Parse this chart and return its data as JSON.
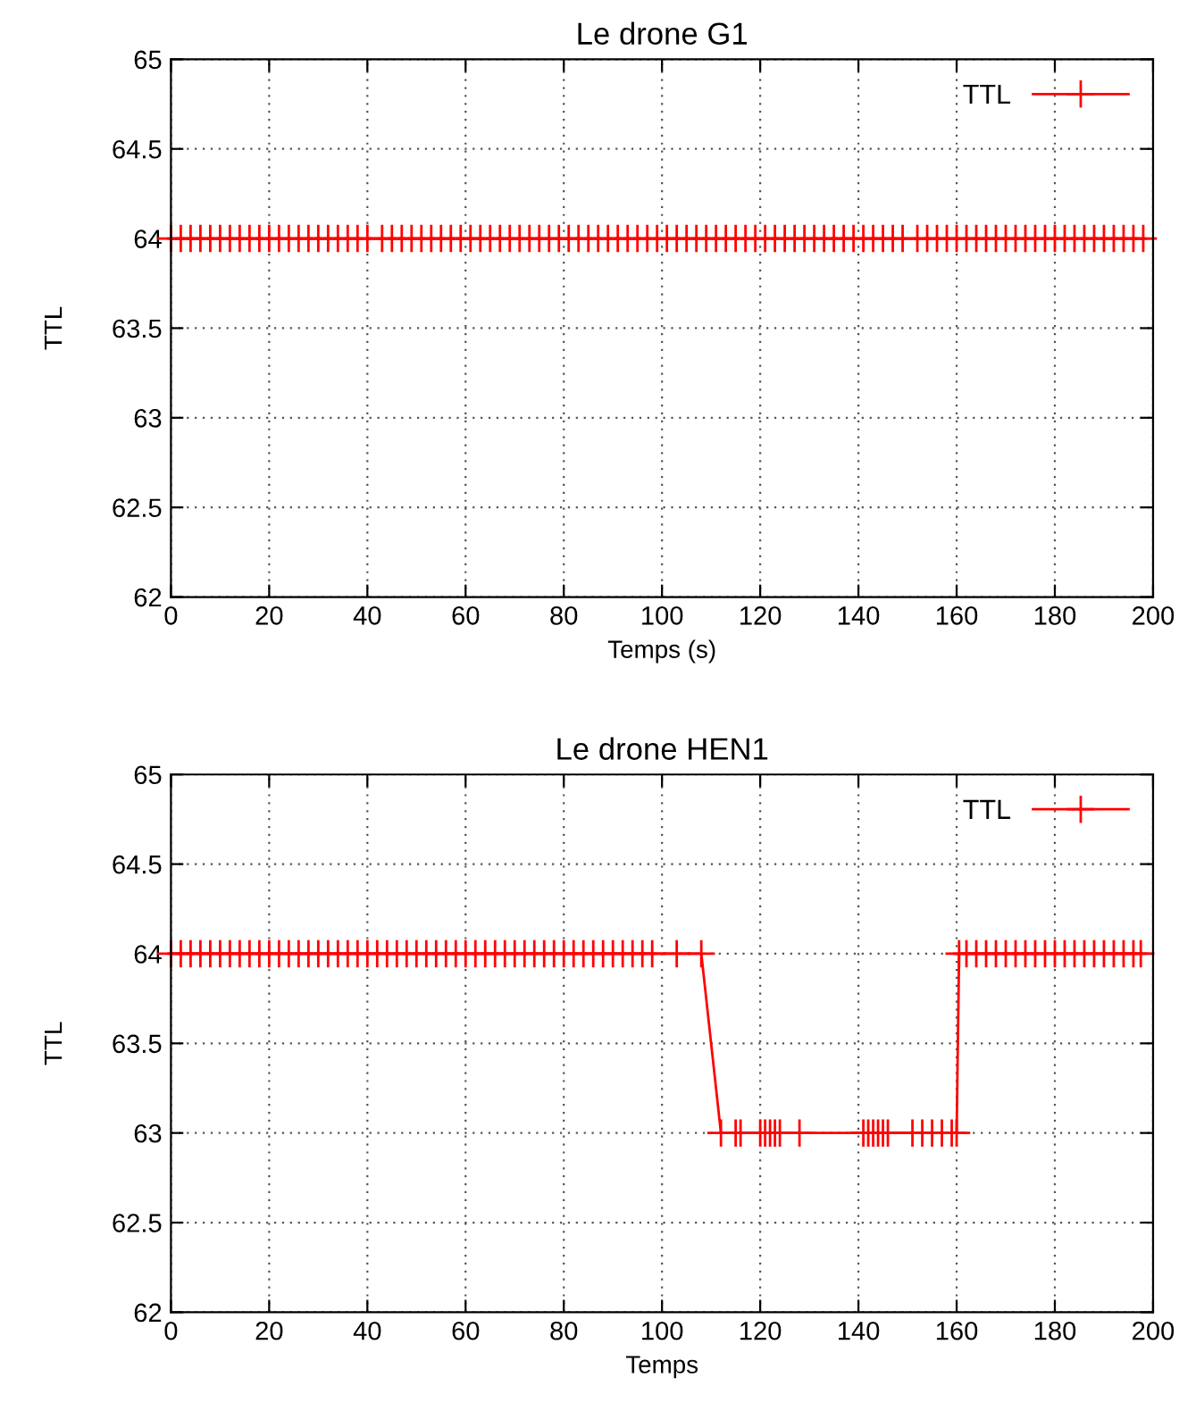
{
  "chart_data": [
    {
      "type": "line",
      "title": "Le drone G1",
      "xlabel": "Temps (s)",
      "ylabel": "TTL",
      "xlim": [
        0,
        200
      ],
      "ylim": [
        62,
        65
      ],
      "xticks": [
        0,
        20,
        40,
        60,
        80,
        100,
        120,
        140,
        160,
        180,
        200
      ],
      "yticks": [
        62,
        62.5,
        63,
        63.5,
        64,
        64.5,
        65
      ],
      "grid": true,
      "legend": "top right",
      "marker": "cross",
      "line_style": "solid",
      "series": [
        {
          "name": "TTL",
          "color": "#ff0000",
          "x": [
            0,
            2,
            4,
            6,
            8,
            10,
            12,
            14,
            16,
            18,
            20,
            22,
            24,
            26,
            28,
            30,
            32,
            34,
            36,
            38,
            40,
            43,
            45,
            47,
            49,
            51,
            53,
            55,
            57,
            59,
            61,
            63,
            65,
            67,
            69,
            71,
            73,
            75,
            77,
            79,
            81,
            83,
            85,
            87,
            89,
            91,
            93,
            95,
            97,
            99,
            101,
            103,
            105,
            107,
            109,
            111,
            113,
            115,
            117,
            119,
            121,
            123,
            125,
            127,
            129,
            131,
            133,
            135,
            137,
            139,
            141,
            143,
            145,
            147,
            149,
            152,
            154,
            156,
            158,
            160,
            162,
            164,
            166,
            168,
            170,
            172,
            174,
            176,
            178,
            180,
            182,
            184,
            186,
            188,
            190,
            192,
            194,
            196,
            198
          ],
          "values": [
            64,
            64,
            64,
            64,
            64,
            64,
            64,
            64,
            64,
            64,
            64,
            64,
            64,
            64,
            64,
            64,
            64,
            64,
            64,
            64,
            64,
            64,
            64,
            64,
            64,
            64,
            64,
            64,
            64,
            64,
            64,
            64,
            64,
            64,
            64,
            64,
            64,
            64,
            64,
            64,
            64,
            64,
            64,
            64,
            64,
            64,
            64,
            64,
            64,
            64,
            64,
            64,
            64,
            64,
            64,
            64,
            64,
            64,
            64,
            64,
            64,
            64,
            64,
            64,
            64,
            64,
            64,
            64,
            64,
            64,
            64,
            64,
            64,
            64,
            64,
            64,
            64,
            64,
            64,
            64,
            64,
            64,
            64,
            64,
            64,
            64,
            64,
            64,
            64,
            64,
            64,
            64,
            64,
            64,
            64,
            64,
            64,
            64,
            64
          ]
        }
      ]
    },
    {
      "type": "line",
      "title": "Le drone HEN1",
      "xlabel": "Temps",
      "ylabel": "TTL",
      "xlim": [
        0,
        200
      ],
      "ylim": [
        62,
        65
      ],
      "xticks": [
        0,
        20,
        40,
        60,
        80,
        100,
        120,
        140,
        160,
        180,
        200
      ],
      "yticks": [
        62,
        62.5,
        63,
        63.5,
        64,
        64.5,
        65
      ],
      "grid": true,
      "legend": "top right",
      "marker": "cross",
      "line_style": "solid",
      "series": [
        {
          "name": "TTL",
          "color": "#ff0000",
          "x": [
            0,
            2,
            4,
            6,
            8,
            10,
            12,
            14,
            16,
            18,
            20,
            22,
            24,
            26,
            28,
            30,
            32,
            34,
            36,
            38,
            40,
            42,
            44,
            46,
            48,
            50,
            52,
            54,
            56,
            58,
            60,
            62,
            64,
            66,
            68,
            70,
            72,
            74,
            76,
            78,
            80,
            82,
            84,
            86,
            88,
            90,
            92,
            94,
            96,
            98,
            103,
            108,
            112,
            115,
            116,
            120,
            121,
            122,
            123,
            124,
            128,
            141,
            142,
            143,
            144,
            145,
            146,
            151,
            153,
            155,
            157,
            159,
            160,
            160.5,
            162,
            164,
            166,
            168,
            170,
            172,
            174,
            176,
            178,
            180,
            182,
            184,
            186,
            188,
            190,
            192,
            194,
            196,
            197.5
          ],
          "values": [
            64,
            64,
            64,
            64,
            64,
            64,
            64,
            64,
            64,
            64,
            64,
            64,
            64,
            64,
            64,
            64,
            64,
            64,
            64,
            64,
            64,
            64,
            64,
            64,
            64,
            64,
            64,
            64,
            64,
            64,
            64,
            64,
            64,
            64,
            64,
            64,
            64,
            64,
            64,
            64,
            64,
            64,
            64,
            64,
            64,
            64,
            64,
            64,
            64,
            64,
            64,
            64,
            63,
            63,
            63,
            63,
            63,
            63,
            63,
            63,
            63,
            63,
            63,
            63,
            63,
            63,
            63,
            63,
            63,
            63,
            63,
            63,
            63,
            64,
            64,
            64,
            64,
            64,
            64,
            64,
            64,
            64,
            64,
            64,
            64,
            64,
            64,
            64,
            64,
            64,
            64,
            64,
            64
          ]
        }
      ]
    }
  ]
}
